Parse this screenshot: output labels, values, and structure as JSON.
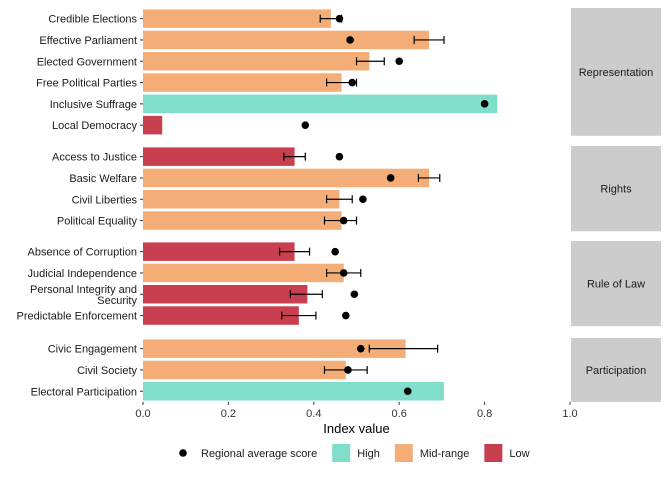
{
  "chart_data": {
    "type": "bar",
    "orientation": "horizontal",
    "xlabel": "Index value",
    "xlim": [
      0,
      1.0
    ],
    "x_ticks": [
      0.0,
      0.2,
      0.4,
      0.6,
      0.8,
      1.0
    ],
    "x_tick_labels": [
      "0.0",
      "0.2",
      "0.4",
      "0.6",
      "0.8",
      "1.0"
    ],
    "grid": false,
    "legend_position": "bottom",
    "colors": {
      "High": "#7fdfcb",
      "Mid-range": "#f5ad78",
      "Low": "#c83f50",
      "point": "#000000",
      "strip": "#cccccc"
    },
    "legend": [
      {
        "key": "point",
        "label": "Regional average score"
      },
      {
        "key": "High",
        "label": "High"
      },
      {
        "key": "Mid-range",
        "label": "Mid-range"
      },
      {
        "key": "Low",
        "label": "Low"
      }
    ],
    "panels": [
      {
        "name": "Representation",
        "items": [
          {
            "label": "Credible Elections",
            "value": 0.44,
            "level": "Mid-range",
            "regional_avg": 0.46,
            "err": [
              0.415,
              0.465
            ]
          },
          {
            "label": "Effective Parliament",
            "value": 0.67,
            "level": "Mid-range",
            "regional_avg": 0.485,
            "err": [
              0.635,
              0.705
            ]
          },
          {
            "label": "Elected Government",
            "value": 0.53,
            "level": "Mid-range",
            "regional_avg": 0.6,
            "err": [
              0.5,
              0.565
            ]
          },
          {
            "label": "Free Political Parties",
            "value": 0.465,
            "level": "Mid-range",
            "regional_avg": 0.49,
            "err": [
              0.43,
              0.5
            ]
          },
          {
            "label": "Inclusive Suffrage",
            "value": 0.83,
            "level": "High",
            "regional_avg": 0.8,
            "err": null
          },
          {
            "label": "Local Democracy",
            "value": 0.045,
            "level": "Low",
            "regional_avg": 0.38,
            "err": null
          }
        ]
      },
      {
        "name": "Rights",
        "items": [
          {
            "label": "Access to Justice",
            "value": 0.355,
            "level": "Low",
            "regional_avg": 0.46,
            "err": [
              0.33,
              0.38
            ]
          },
          {
            "label": "Basic Welfare",
            "value": 0.67,
            "level": "Mid-range",
            "regional_avg": 0.58,
            "err": [
              0.645,
              0.695
            ]
          },
          {
            "label": "Civil Liberties",
            "value": 0.46,
            "level": "Mid-range",
            "regional_avg": 0.515,
            "err": [
              0.43,
              0.49
            ]
          },
          {
            "label": "Political Equality",
            "value": 0.465,
            "level": "Mid-range",
            "regional_avg": 0.47,
            "err": [
              0.425,
              0.5
            ]
          }
        ]
      },
      {
        "name": "Rule of Law",
        "items": [
          {
            "label": "Absence of Corruption",
            "value": 0.355,
            "level": "Low",
            "regional_avg": 0.45,
            "err": [
              0.32,
              0.39
            ]
          },
          {
            "label": "Judicial Independence",
            "value": 0.47,
            "level": "Mid-range",
            "regional_avg": 0.47,
            "err": [
              0.43,
              0.51
            ]
          },
          {
            "label": "Personal Integrity and\nSecurity",
            "value": 0.385,
            "level": "Low",
            "regional_avg": 0.495,
            "err": [
              0.345,
              0.42
            ]
          },
          {
            "label": "Predictable Enforcement",
            "value": 0.365,
            "level": "Low",
            "regional_avg": 0.475,
            "err": [
              0.325,
              0.405
            ]
          }
        ]
      },
      {
        "name": "Participation",
        "items": [
          {
            "label": "Civic Engagement",
            "value": 0.615,
            "level": "Mid-range",
            "regional_avg": 0.51,
            "err": [
              0.53,
              0.69
            ]
          },
          {
            "label": "Civil Society",
            "value": 0.475,
            "level": "Mid-range",
            "regional_avg": 0.48,
            "err": [
              0.425,
              0.525
            ]
          },
          {
            "label": "Electoral Participation",
            "value": 0.705,
            "level": "High",
            "regional_avg": 0.62,
            "err": null
          }
        ]
      }
    ]
  }
}
